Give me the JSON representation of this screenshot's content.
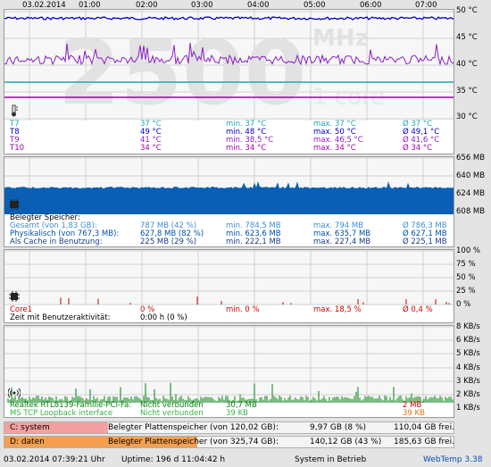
{
  "time_axis": {
    "date": "03.02.2014",
    "hours": [
      "01:00",
      "02:00",
      "03:00",
      "04:00",
      "05:00",
      "06:00",
      "07:00"
    ]
  },
  "temperature": {
    "watermark": {
      "big": "2500",
      "unit": "MHz",
      "cores": "1 core"
    },
    "y_ticks": [
      "50 °C",
      "45 °C",
      "40 °C",
      "35 °C",
      "30 °C"
    ],
    "rows": [
      {
        "name": "T7",
        "cur": "37 °C",
        "min": "min. 37 °C",
        "max": "max. 37 °C",
        "avg": "Ø 37 °C",
        "color": "#1fa9ab"
      },
      {
        "name": "T8",
        "cur": "49 °C",
        "min": "min. 48 °C",
        "max": "max. 50 °C",
        "avg": "Ø 49,1 °C",
        "color": "#0000c8"
      },
      {
        "name": "T9",
        "cur": "41 °C",
        "min": "min. 38,5 °C",
        "max": "max. 46,5 °C",
        "avg": "Ø 41,6 °C",
        "color": "#8a1fc4"
      },
      {
        "name": "T10",
        "cur": "34 °C",
        "min": "min. 34 °C",
        "max": "max. 34 °C",
        "avg": "Ø 34 °C",
        "color": "#a000a0"
      }
    ]
  },
  "memory": {
    "y_ticks": [
      "656 MB",
      "640 MB",
      "624 MB",
      "608 MB"
    ],
    "title": "Belegter Speicher:",
    "rows": [
      {
        "name": "Gesamt (von 1,83 GB):",
        "cur": "787 MB (42 %)",
        "min": "min. 784,5 MB",
        "max": "max. 794 MB",
        "avg": "Ø 786,3 MB",
        "color": "#3f8fcf"
      },
      {
        "name": "Physikalisch (von 767,3 MB):",
        "cur": "627,8 MB (82 %)",
        "min": "min. 623,6 MB",
        "max": "max. 635,7 MB",
        "avg": "Ø 627,1 MB",
        "color": "#0050a8"
      },
      {
        "name": "Als Cache in Benutzung:",
        "cur": "225 MB (29 %)",
        "min": "min. 222,1 MB",
        "max": "max. 227,4 MB",
        "avg": "Ø 225,1 MB",
        "color": "#1a3f8a"
      }
    ]
  },
  "cpu": {
    "y_ticks": [
      "100 %",
      "75 %",
      "50 %",
      "25 %",
      "0 %"
    ],
    "row": {
      "name": "Core1",
      "cur": "0 %",
      "min": "min. 0 %",
      "max": "max. 18,5 %",
      "avg": "Ø 0,4 %",
      "color": "#c80000"
    },
    "activity_label": "Zeit mit Benutzeraktivität:",
    "activity_value": "0:00 h (0 %)"
  },
  "network": {
    "y_ticks": [
      "8 KB/s",
      "6 KB/s",
      "5 KB/s",
      "4 KB/s",
      "3 KB/s",
      "2 KB/s",
      "1 KB/s"
    ],
    "rows": [
      {
        "name": "Realtek RTL8139-Familie-PCI-Fa:",
        "status": "Nicht verbunden",
        "value": "30,7 MB",
        "extra": "2 MB",
        "color": "#00800f",
        "extra_color": "#c80000"
      },
      {
        "name": "MS TCP Loopback interface",
        "status": "Nicht verbunden",
        "value": "39 KB",
        "extra": "39 KB",
        "color": "#3db04a",
        "extra_color": "#e07010"
      }
    ]
  },
  "disks": [
    {
      "drive": "C: system",
      "label": "Belegter Plattenspeicher (von 120,02 GB):",
      "used": "9,97 GB (8 %)",
      "free": "110,04 GB frei.",
      "percent": 8,
      "color": "#f4a0a0"
    },
    {
      "drive": "D: daten",
      "label": "Belegter Plattenspeicher (von 325,74 GB):",
      "used": "140,12 GB (43 %)",
      "free": "185,63 GB frei.",
      "percent": 43,
      "color": "#f4a050"
    }
  ],
  "status": {
    "datetime": "03.02.2014 07:39:21 Uhr",
    "uptime": "Uptime: 196 d 11:04:42 h",
    "state": "System in Betrieb",
    "app": "WebTemp 3.38"
  }
}
